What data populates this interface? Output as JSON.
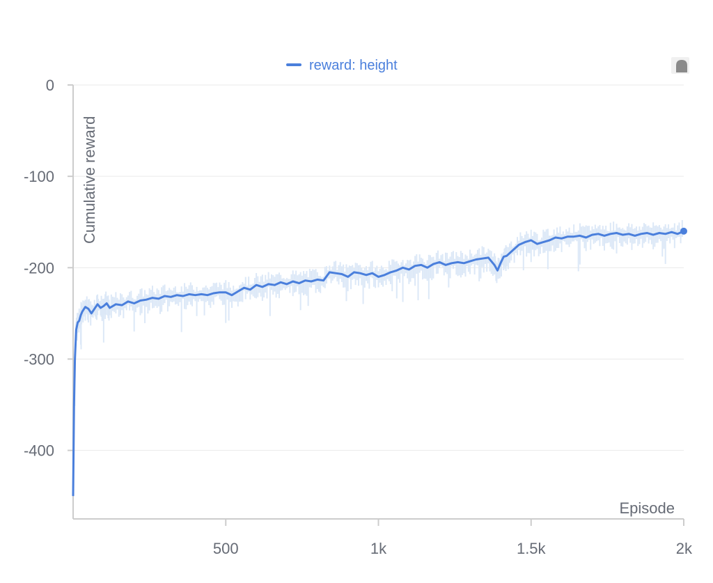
{
  "chart_data": {
    "type": "line",
    "title": "",
    "xlabel": "Episode",
    "ylabel": "Cumulative reward",
    "xlim": [
      0,
      2000
    ],
    "ylim": [
      -475,
      0
    ],
    "x_ticks": [
      {
        "value": 500,
        "label": "500"
      },
      {
        "value": 1000,
        "label": "1k"
      },
      {
        "value": 1500,
        "label": "1.5k"
      },
      {
        "value": 2000,
        "label": "2k"
      }
    ],
    "y_ticks": [
      {
        "value": 0,
        "label": "0"
      },
      {
        "value": -100,
        "label": "-100"
      },
      {
        "value": -200,
        "label": "-200"
      },
      {
        "value": -300,
        "label": "-300"
      },
      {
        "value": -400,
        "label": "-400"
      }
    ],
    "grid": "horizontal",
    "legend": {
      "position": "top-center"
    },
    "colors": {
      "smoothed": "#4a7fdc",
      "raw": "#dce8f7",
      "grid": "#e9e9e9",
      "axis": "#cccccc",
      "text": "#666b75"
    },
    "series": [
      {
        "name": "reward: height",
        "x": [
          0,
          3,
          6,
          10,
          15,
          20,
          25,
          30,
          40,
          50,
          60,
          70,
          80,
          90,
          100,
          110,
          120,
          140,
          160,
          180,
          200,
          220,
          240,
          260,
          280,
          300,
          320,
          340,
          360,
          380,
          400,
          420,
          440,
          460,
          480,
          500,
          520,
          540,
          560,
          580,
          600,
          620,
          640,
          660,
          680,
          700,
          720,
          740,
          760,
          780,
          800,
          820,
          840,
          860,
          880,
          900,
          920,
          940,
          960,
          980,
          1000,
          1020,
          1040,
          1060,
          1080,
          1100,
          1120,
          1140,
          1160,
          1180,
          1200,
          1220,
          1240,
          1260,
          1280,
          1300,
          1320,
          1340,
          1360,
          1380,
          1390,
          1400,
          1410,
          1420,
          1440,
          1460,
          1480,
          1500,
          1520,
          1540,
          1560,
          1580,
          1600,
          1620,
          1640,
          1660,
          1680,
          1700,
          1720,
          1740,
          1760,
          1780,
          1800,
          1820,
          1840,
          1860,
          1880,
          1900,
          1920,
          1940,
          1960,
          1980,
          2000
        ],
        "y": [
          -450,
          -350,
          -300,
          -268,
          -260,
          -258,
          -252,
          -248,
          -243,
          -245,
          -250,
          -245,
          -240,
          -244,
          -242,
          -239,
          -244,
          -240,
          -241,
          -237,
          -239,
          -236,
          -235,
          -233,
          -234,
          -231,
          -232,
          -230,
          -231,
          -229,
          -230,
          -229,
          -230,
          -228,
          -227,
          -227,
          -230,
          -226,
          -222,
          -224,
          -219,
          -221,
          -218,
          -219,
          -216,
          -218,
          -215,
          -217,
          -214,
          -215,
          -213,
          -214,
          -205,
          -206,
          -207,
          -210,
          -205,
          -206,
          -208,
          -206,
          -210,
          -208,
          -205,
          -203,
          -200,
          -202,
          -198,
          -197,
          -200,
          -196,
          -194,
          -197,
          -195,
          -194,
          -195,
          -193,
          -191,
          -190,
          -189,
          -197,
          -203,
          -195,
          -188,
          -187,
          -181,
          -175,
          -172,
          -170,
          -174,
          -172,
          -170,
          -167,
          -168,
          -166,
          -166,
          -165,
          -167,
          -164,
          -163,
          -165,
          -163,
          -162,
          -164,
          -163,
          -165,
          -163,
          -162,
          -164,
          -162,
          -163,
          -161,
          -163,
          -160
        ]
      }
    ]
  }
}
